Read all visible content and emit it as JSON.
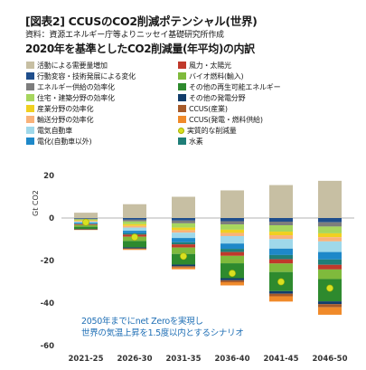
{
  "header": {
    "title": "[図表2] CCUSのCO2削減ポテンシャル(世界)",
    "source": "資料：資源エネルギー庁等よりニッセイ基礎研究所作成",
    "subtitle": "2020年を基準としたCO2削減量(年平均)の内訳"
  },
  "note": "2050年までにnet Zeroを実現し\n世界の気温上昇を1.5度以内とするシナリオ",
  "legend": [
    {
      "label": "活動による需要量増加",
      "color": "#c7bfa3"
    },
    {
      "label": "風力・太陽光",
      "color": "#c0392b"
    },
    {
      "label": "行動変容・技術発展による変化",
      "color": "#1f4e8c"
    },
    {
      "label": "バイオ燃料(輸入)",
      "color": "#7fba3c"
    },
    {
      "label": "エネルギー供給の効率化",
      "color": "#7d7d7d"
    },
    {
      "label": "その他の再生可能エネルギー",
      "color": "#2e8a2e"
    },
    {
      "label": "住宅・建築分野の効率化",
      "color": "#a7d65e"
    },
    {
      "label": "その他の発電分野",
      "color": "#123d6b"
    },
    {
      "label": "産業分野の効率化",
      "color": "#f0d020"
    },
    {
      "label": "CCUS(産業)",
      "color": "#a65a2a"
    },
    {
      "label": "輸送分野の効率化",
      "color": "#f9b27a"
    },
    {
      "label": "CCUS(発電・燃料供給)",
      "color": "#f08a2a"
    },
    {
      "label": "電気自動車",
      "color": "#9fd8ea"
    },
    {
      "label": "実質的な削減量",
      "marker": "dot"
    },
    {
      "label": "電化(自動車以外)",
      "color": "#1e88c9"
    },
    {
      "label": "水素",
      "color": "#1f7e78"
    }
  ],
  "chart_data": {
    "type": "bar",
    "stacked": true,
    "title": "",
    "xlabel": "",
    "ylabel": "Gt CO2",
    "ylim": [
      -60,
      20
    ],
    "yticks": [
      20,
      0,
      -20,
      -40,
      -60
    ],
    "grid": false,
    "categories": [
      "2021-25",
      "2026-30",
      "2031-35",
      "2036-40",
      "2041-45",
      "2046-50"
    ],
    "series": [
      {
        "name": "活動による需要量増加",
        "color": "#c7bfa3",
        "values": [
          2.5,
          6.5,
          10,
          13,
          15.5,
          17.5
        ]
      },
      {
        "name": "行動変容・技術発展による変化",
        "color": "#1f4e8c",
        "values": [
          -0.3,
          -0.8,
          -1.2,
          -1.5,
          -1.7,
          -2
        ]
      },
      {
        "name": "エネルギー供給の効率化",
        "color": "#7d7d7d",
        "values": [
          -0.3,
          -0.8,
          -1.3,
          -1.5,
          -1.7,
          -2
        ]
      },
      {
        "name": "住宅・建築分野の効率化",
        "color": "#a7d65e",
        "values": [
          -0.5,
          -1.3,
          -2,
          -2.5,
          -3,
          -3.2
        ]
      },
      {
        "name": "産業分野の効率化",
        "color": "#f0d020",
        "values": [
          -0.3,
          -0.8,
          -1.2,
          -1.5,
          -1.7,
          -1.8
        ]
      },
      {
        "name": "輸送分野の効率化",
        "color": "#f9b27a",
        "values": [
          -0.3,
          -0.8,
          -1.2,
          -1.5,
          -1.8,
          -2
        ]
      },
      {
        "name": "電気自動車",
        "color": "#9fd8ea",
        "values": [
          -0.5,
          -1.5,
          -2.5,
          -3.5,
          -4.5,
          -5
        ]
      },
      {
        "name": "電化(自動車以外)",
        "color": "#1e88c9",
        "values": [
          -0.5,
          -1.2,
          -2,
          -2.5,
          -3,
          -3.5
        ]
      },
      {
        "name": "水素",
        "color": "#1f7e78",
        "values": [
          -0.2,
          -0.6,
          -1,
          -1.5,
          -2,
          -2.5
        ]
      },
      {
        "name": "風力・太陽光",
        "color": "#c0392b",
        "values": [
          -0.4,
          -1,
          -1.5,
          -1.8,
          -2,
          -2.2
        ]
      },
      {
        "name": "バイオ燃料(輸入)",
        "color": "#7fba3c",
        "values": [
          -0.8,
          -2,
          -3,
          -3.5,
          -4,
          -4.5
        ]
      },
      {
        "name": "その他の再生可能エネルギー",
        "color": "#2e8a2e",
        "values": [
          -1,
          -3,
          -5,
          -7,
          -9,
          -10.5
        ]
      },
      {
        "name": "その他の発電分野",
        "color": "#123d6b",
        "values": [
          -0.2,
          -0.5,
          -0.8,
          -1,
          -1.2,
          -1.3
        ]
      },
      {
        "name": "CCUS(産業)",
        "color": "#a65a2a",
        "values": [
          -0.1,
          -0.3,
          -0.6,
          -0.9,
          -1.2,
          -1.5
        ]
      },
      {
        "name": "CCUS(発電・燃料供給)",
        "color": "#f08a2a",
        "values": [
          -0.1,
          -0.4,
          -0.8,
          -1.5,
          -2.5,
          -3.5
        ]
      }
    ],
    "net_reduction": {
      "name": "実質的な削減量",
      "color": "#d9e021",
      "values": [
        -2,
        -9,
        -18,
        -26,
        -30,
        -33
      ]
    }
  }
}
